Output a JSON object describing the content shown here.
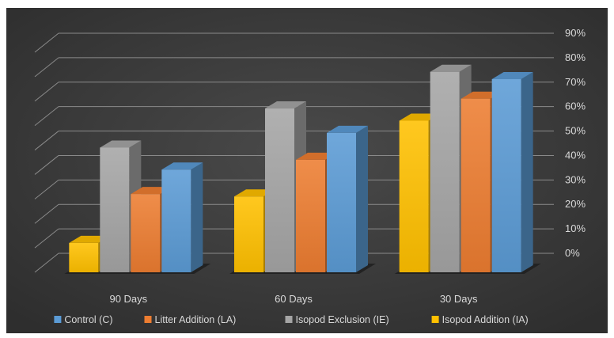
{
  "chart_data": {
    "type": "bar",
    "variant": "3d-clustered-column",
    "title": "",
    "xlabel": "",
    "ylabel": "",
    "categories": [
      "90 Days",
      "60 Days",
      "30 Days"
    ],
    "series": [
      {
        "name": "Isopod Addition (IA)",
        "values": [
          12,
          31,
          62
        ],
        "color": "#FFC000"
      },
      {
        "name": "Isopod Exclusion (IE)",
        "values": [
          51,
          67,
          82
        ],
        "color": "#A5A5A5"
      },
      {
        "name": "Litter Addition (LA)",
        "values": [
          32,
          46,
          71
        ],
        "color": "#ED7D31"
      },
      {
        "name": "Control (C)",
        "values": [
          42,
          57,
          79
        ],
        "color": "#5B9BD5"
      }
    ],
    "legend_order": [
      "Control (C)",
      "Litter Addition (LA)",
      "Isopod Exclusion (IE)",
      "Isopod Addition (IA)"
    ],
    "ylim": [
      0,
      90
    ],
    "yticks": [
      "0%",
      "10%",
      "20%",
      "30%",
      "40%",
      "50%",
      "60%",
      "70%",
      "80%",
      "90%"
    ],
    "yaxis_position": "right",
    "grid": true,
    "legend_position": "bottom",
    "background": "#404040",
    "text_color": "#D9D9D9"
  }
}
